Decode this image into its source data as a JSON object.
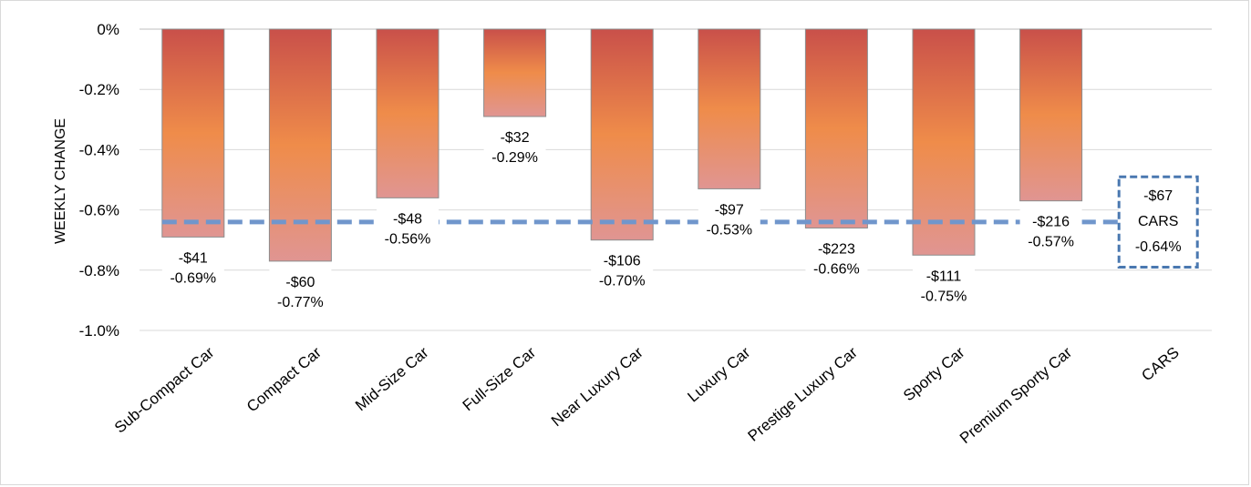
{
  "chart_data": {
    "type": "bar",
    "ylabel": "WEEKLY CHANGE",
    "ylim": [
      -1.0,
      0
    ],
    "yticks": [
      "0%",
      "-0.2%",
      "-0.4%",
      "-0.6%",
      "-0.8%",
      "-1.0%"
    ],
    "ytick_values": [
      0,
      -0.2,
      -0.4,
      -0.6,
      -0.8,
      -1.0
    ],
    "grid": true,
    "categories": [
      "Sub-Compact Car",
      "Compact Car",
      "Mid-Size Car",
      "Full-Size Car",
      "Near Luxury Car",
      "Luxury Car",
      "Prestige Luxury Car",
      "Sporty Car",
      "Premium Sporty Car",
      "CARS"
    ],
    "values": [
      -0.69,
      -0.77,
      -0.56,
      -0.29,
      -0.7,
      -0.53,
      -0.66,
      -0.75,
      -0.57,
      null
    ],
    "dollar_labels": [
      "-$41",
      "-$60",
      "-$48",
      "-$32",
      "-$106",
      "-$97",
      "-$223",
      "-$111",
      "-$216"
    ],
    "percent_labels": [
      "-0.69%",
      "-0.77%",
      "-0.56%",
      "-0.29%",
      "-0.70%",
      "-0.53%",
      "-0.66%",
      "-0.75%",
      "-0.57%"
    ],
    "reference_line": {
      "value": -0.64,
      "dollar_label": "-$67",
      "name_label": "CARS",
      "percent_label": "-0.64%"
    },
    "colors": {
      "bar_top": "#c9504a",
      "bar_mid": "#ef8c4a",
      "bar_bottom": "#e09592",
      "bar_border": "#8c8c8c",
      "reference_line": "#7096cc",
      "label_box_border": "#4a78b0",
      "grid": "#d9d9d9"
    }
  }
}
